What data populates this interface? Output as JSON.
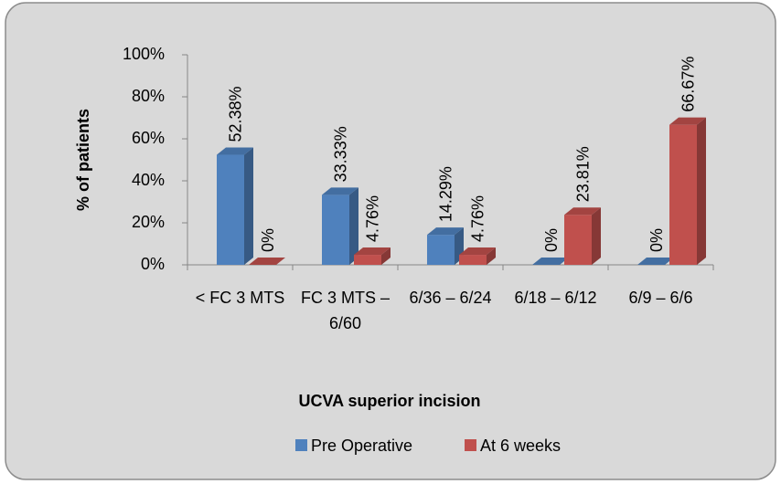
{
  "chart_data": {
    "type": "bar3d",
    "x_label": "UCVA superior incision",
    "y_label": "% of patients",
    "categories": [
      "< FC 3 MTS",
      "FC 3 MTS – 6/60",
      "6/36 – 6/24",
      "6/18 – 6/12",
      "6/9 – 6/6"
    ],
    "series": [
      {
        "name": "Pre Operative",
        "color": "#4f81bd",
        "values": [
          52.38,
          33.33,
          14.29,
          0,
          0
        ],
        "value_labels": [
          "52.38%",
          "33.33%",
          "14.29%",
          "0%",
          "0%"
        ]
      },
      {
        "name": "At 6 weeks",
        "color": "#c0504d",
        "values": [
          0,
          4.76,
          4.76,
          23.81,
          66.67
        ],
        "value_labels": [
          "0%",
          "4.76%",
          "4.76%",
          "23.81%",
          "66.67%"
        ]
      }
    ],
    "ylim": [
      0,
      100
    ],
    "yticks": [
      {
        "value": 0,
        "label": "0%"
      },
      {
        "value": 20,
        "label": "20%"
      },
      {
        "value": 40,
        "label": "40%"
      },
      {
        "value": 60,
        "label": "60%"
      },
      {
        "value": 80,
        "label": "80%"
      },
      {
        "value": 100,
        "label": "100%"
      }
    ],
    "legend": "bottom"
  }
}
